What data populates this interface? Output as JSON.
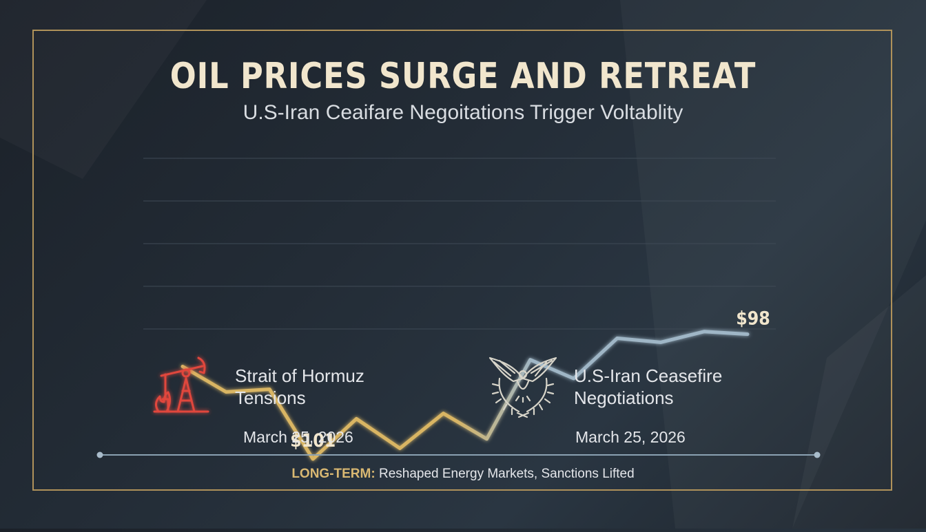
{
  "title": "OIL PRICES SURGE AND RETREAT",
  "subtitle": "U.S-Iran Ceaifare Negoitations Trigger Voltablity",
  "chart_data": {
    "type": "line",
    "title": "OIL PRICES SURGE AND RETREAT",
    "subtitle": "U.S-Iran Ceaifare Negoitations Trigger Voltablity",
    "xlabel": "",
    "ylabel": "",
    "grid": true,
    "values": [
      null,
      null,
      null,
      101,
      null,
      null,
      null,
      null,
      null,
      null,
      null,
      null,
      null,
      98
    ],
    "data_labels": [
      {
        "index": 3,
        "text": "$101"
      },
      {
        "index": 13,
        "text": "$98"
      }
    ],
    "relative_shape": [
      0.31,
      0.5,
      0.48,
      1.0,
      0.7,
      0.92,
      0.66,
      0.85,
      0.26,
      0.4,
      0.1,
      0.13,
      0.05,
      0.07
    ],
    "colors": {
      "start": "#d9b563",
      "end": "#9fb6c6",
      "grid": "#3f4a56"
    }
  },
  "events": [
    {
      "icon": "oil-pump-icon",
      "label_line1": "Strait of Hormuz",
      "label_line2": "Tensions",
      "date": "March 25, 2026",
      "color": "#e0463c"
    },
    {
      "icon": "eagle-wreath-icon",
      "label_line1": "U.S-Iran Ceasefire",
      "label_line2": "Negotiations",
      "date": "March 25, 2026",
      "color": "#d7d4c9"
    }
  ],
  "timeline": {
    "key": "LONG-TERM:",
    "text": " Reshaped Energy Markets, Sanctions Lifted"
  },
  "colors": {
    "frame": "#b0925a",
    "accent": "#d9b872",
    "background": "#222a33"
  }
}
